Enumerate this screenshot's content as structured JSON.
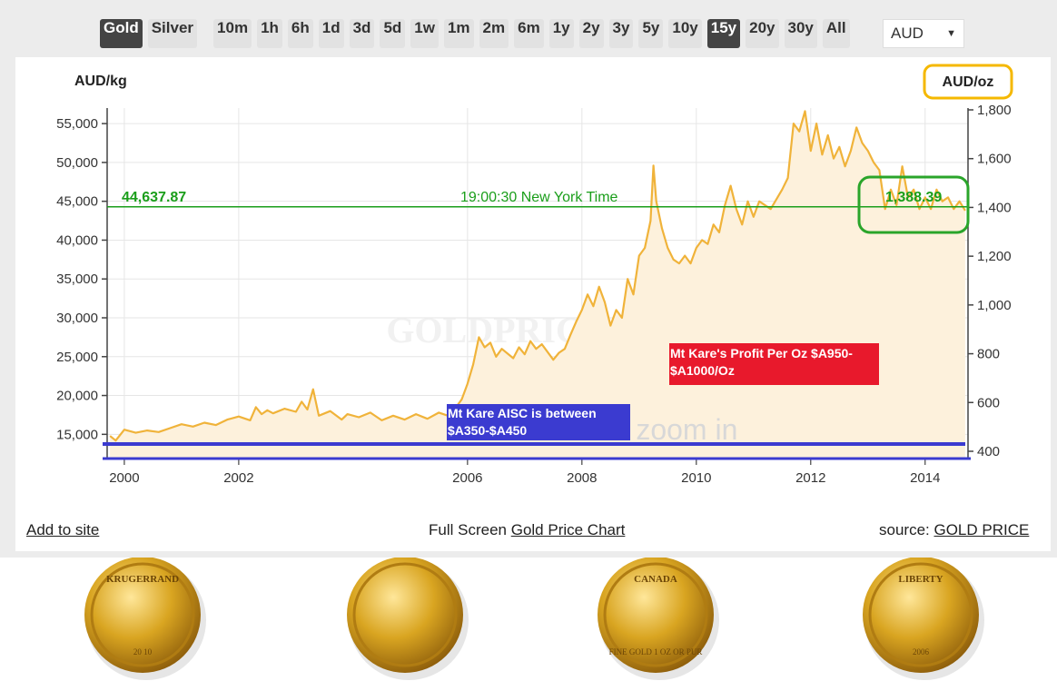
{
  "toolbar": {
    "metals": [
      {
        "label": "Gold",
        "active": true
      },
      {
        "label": "Silver",
        "active": false
      }
    ],
    "ranges": [
      {
        "label": "10m",
        "active": false
      },
      {
        "label": "1h",
        "active": false
      },
      {
        "label": "6h",
        "active": false
      },
      {
        "label": "1d",
        "active": false
      },
      {
        "label": "3d",
        "active": false
      },
      {
        "label": "5d",
        "active": false
      },
      {
        "label": "1w",
        "active": false
      },
      {
        "label": "1m",
        "active": false
      },
      {
        "label": "2m",
        "active": false
      },
      {
        "label": "6m",
        "active": false
      },
      {
        "label": "1y",
        "active": false
      },
      {
        "label": "2y",
        "active": false
      },
      {
        "label": "3y",
        "active": false
      },
      {
        "label": "5y",
        "active": false
      },
      {
        "label": "10y",
        "active": false
      },
      {
        "label": "15y",
        "active": true
      },
      {
        "label": "20y",
        "active": false
      },
      {
        "label": "30y",
        "active": false
      },
      {
        "label": "All",
        "active": false
      }
    ],
    "currency": "AUD"
  },
  "chart_data": {
    "type": "area",
    "watermark": "GOLDPRICE.ORG",
    "overlay_text": "click chart to zoom in",
    "left_unit_label": "AUD/kg",
    "right_unit_label": "AUD/oz",
    "x_ticks": [
      "2000",
      "2002",
      "2006",
      "2008",
      "2010",
      "2012",
      "2014"
    ],
    "left_ticks": [
      "55,000",
      "50,000",
      "45,000",
      "40,000",
      "35,000",
      "30,000",
      "25,000",
      "20,000",
      "15,000"
    ],
    "right_ticks": [
      "1,800",
      "1,600",
      "1,400",
      "1,200",
      "1,000",
      "800",
      "600",
      "400"
    ],
    "y_left_range": [
      12000,
      57000
    ],
    "x_range": [
      1999.7,
      2014.75
    ],
    "current_price_kg": 44637.87,
    "current_price_kg_label": "44,637.87",
    "current_price_oz_label": "1,388.39",
    "time_label": "19:00:30 New York Time",
    "colors": {
      "line": "#f0b33a",
      "fill": "#fdf1dc",
      "price_line": "#1a9e1a",
      "aisc": "#3b3bd0",
      "profit_box": "#e8192c",
      "highlight_circle": "#2aa52a",
      "highlight_unit": "#f5b800"
    },
    "series": [
      {
        "values": [
          [
            1999.75,
            14800
          ],
          [
            1999.85,
            14200
          ],
          [
            2000.0,
            15600
          ],
          [
            2000.2,
            15200
          ],
          [
            2000.4,
            15500
          ],
          [
            2000.6,
            15300
          ],
          [
            2000.8,
            15800
          ],
          [
            2001.0,
            16300
          ],
          [
            2001.2,
            16000
          ],
          [
            2001.4,
            16500
          ],
          [
            2001.6,
            16200
          ],
          [
            2001.8,
            16900
          ],
          [
            2002.0,
            17300
          ],
          [
            2002.2,
            16800
          ],
          [
            2002.3,
            18500
          ],
          [
            2002.4,
            17600
          ],
          [
            2002.5,
            18100
          ],
          [
            2002.6,
            17700
          ],
          [
            2002.8,
            18300
          ],
          [
            2003.0,
            17900
          ],
          [
            2003.1,
            19200
          ],
          [
            2003.2,
            18200
          ],
          [
            2003.3,
            20800
          ],
          [
            2003.4,
            17400
          ],
          [
            2003.6,
            18000
          ],
          [
            2003.8,
            16900
          ],
          [
            2003.9,
            17600
          ],
          [
            2004.1,
            17200
          ],
          [
            2004.3,
            17800
          ],
          [
            2004.5,
            16800
          ],
          [
            2004.7,
            17400
          ],
          [
            2004.9,
            16900
          ],
          [
            2005.1,
            17600
          ],
          [
            2005.3,
            17000
          ],
          [
            2005.5,
            17800
          ],
          [
            2005.7,
            17300
          ],
          [
            2005.8,
            18500
          ],
          [
            2005.9,
            19500
          ],
          [
            2006.0,
            21500
          ],
          [
            2006.1,
            24000
          ],
          [
            2006.2,
            27500
          ],
          [
            2006.3,
            26200
          ],
          [
            2006.4,
            26800
          ],
          [
            2006.5,
            25000
          ],
          [
            2006.6,
            26000
          ],
          [
            2006.8,
            24800
          ],
          [
            2006.9,
            26200
          ],
          [
            2007.0,
            25300
          ],
          [
            2007.1,
            27000
          ],
          [
            2007.2,
            26000
          ],
          [
            2007.3,
            26600
          ],
          [
            2007.5,
            24600
          ],
          [
            2007.6,
            25500
          ],
          [
            2007.7,
            26000
          ],
          [
            2007.8,
            27800
          ],
          [
            2007.9,
            29500
          ],
          [
            2008.0,
            31000
          ],
          [
            2008.1,
            33000
          ],
          [
            2008.2,
            31500
          ],
          [
            2008.3,
            34000
          ],
          [
            2008.4,
            32000
          ],
          [
            2008.5,
            29000
          ],
          [
            2008.6,
            31000
          ],
          [
            2008.7,
            30000
          ],
          [
            2008.8,
            35000
          ],
          [
            2008.9,
            33000
          ],
          [
            2009.0,
            38000
          ],
          [
            2009.1,
            39000
          ],
          [
            2009.2,
            42500
          ],
          [
            2009.25,
            49600
          ],
          [
            2009.3,
            45000
          ],
          [
            2009.4,
            41500
          ],
          [
            2009.5,
            39000
          ],
          [
            2009.6,
            37500
          ],
          [
            2009.7,
            37000
          ],
          [
            2009.8,
            38000
          ],
          [
            2009.9,
            37000
          ],
          [
            2010.0,
            39000
          ],
          [
            2010.1,
            40000
          ],
          [
            2010.2,
            39500
          ],
          [
            2010.3,
            42000
          ],
          [
            2010.4,
            41000
          ],
          [
            2010.5,
            44500
          ],
          [
            2010.6,
            47000
          ],
          [
            2010.7,
            44000
          ],
          [
            2010.8,
            42000
          ],
          [
            2010.9,
            45000
          ],
          [
            2011.0,
            43000
          ],
          [
            2011.1,
            45000
          ],
          [
            2011.3,
            44000
          ],
          [
            2011.5,
            46500
          ],
          [
            2011.6,
            48000
          ],
          [
            2011.7,
            55000
          ],
          [
            2011.8,
            54000
          ],
          [
            2011.9,
            56600
          ],
          [
            2012.0,
            51500
          ],
          [
            2012.1,
            55000
          ],
          [
            2012.2,
            51000
          ],
          [
            2012.3,
            53500
          ],
          [
            2012.4,
            50500
          ],
          [
            2012.5,
            52000
          ],
          [
            2012.6,
            49500
          ],
          [
            2012.7,
            51500
          ],
          [
            2012.8,
            54500
          ],
          [
            2012.9,
            52500
          ],
          [
            2013.0,
            51500
          ],
          [
            2013.1,
            50000
          ],
          [
            2013.2,
            49000
          ],
          [
            2013.3,
            44000
          ],
          [
            2013.4,
            46500
          ],
          [
            2013.5,
            44500
          ],
          [
            2013.6,
            49500
          ],
          [
            2013.7,
            45500
          ],
          [
            2013.8,
            46500
          ],
          [
            2013.9,
            44000
          ],
          [
            2014.0,
            45500
          ],
          [
            2014.1,
            44000
          ],
          [
            2014.2,
            46500
          ],
          [
            2014.3,
            45000
          ],
          [
            2014.4,
            45500
          ],
          [
            2014.5,
            44000
          ],
          [
            2014.6,
            45000
          ],
          [
            2014.7,
            43800
          ]
        ]
      }
    ],
    "annotations": {
      "profit": "Mt Kare's Profit Per Oz $A950-$A1000/Oz",
      "profit_lines": [
        "Mt Kare's Profit Per Oz $A950-",
        "$A1000/Oz"
      ],
      "aisc": "Mt Kare AISC is between $A350-$A450",
      "aisc_lines": [
        "Mt Kare AISC is between",
        "$A350-$A450"
      ]
    }
  },
  "footer": {
    "add_to_site": "Add to site",
    "full_screen_prefix": "Full Screen",
    "full_screen_link": "Gold Price Chart",
    "source_prefix": "source:",
    "source_link": "GOLD PRICE"
  },
  "coins": [
    {
      "icon": "krugerrand-coin-icon",
      "text": "KRUGERRAND",
      "sub": "20  10"
    },
    {
      "icon": "american-eagle-coin-icon",
      "text": "",
      "sub": ""
    },
    {
      "icon": "maple-leaf-coin-icon",
      "text": "CANADA",
      "sub": "FINE GOLD 1 OZ OR PUR"
    },
    {
      "icon": "buffalo-coin-icon",
      "text": "LIBERTY",
      "sub": "2006"
    }
  ]
}
